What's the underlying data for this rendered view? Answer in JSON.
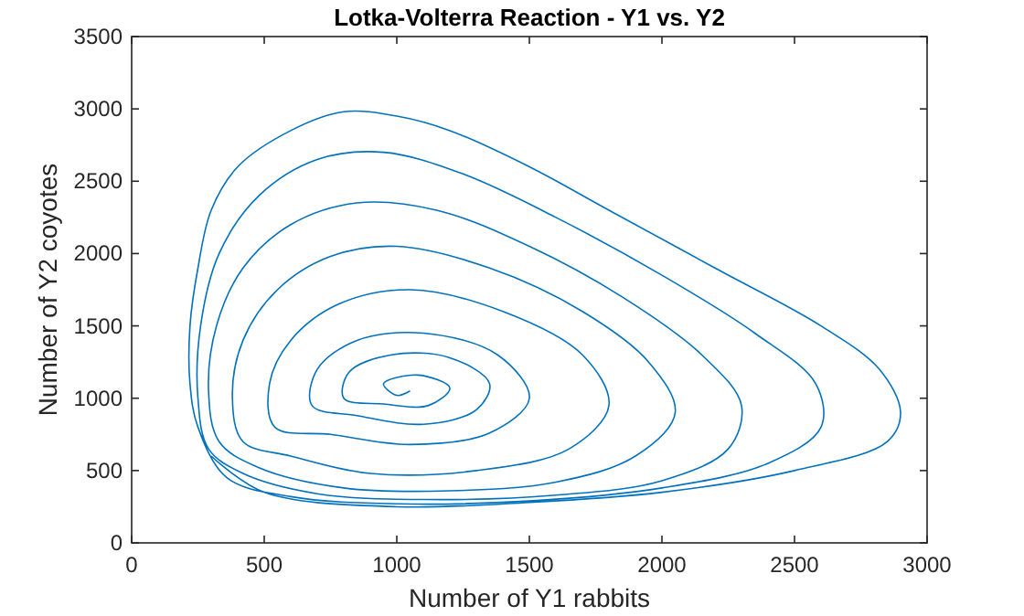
{
  "chart_data": {
    "type": "line",
    "title": "Lotka-Volterra Reaction - Y1 vs. Y2",
    "xlabel": "Number of Y1 rabbits",
    "ylabel": "Number of Y2 coyotes",
    "xlim": [
      0,
      3000
    ],
    "xticks": [
      0,
      500,
      1000,
      1500,
      2000,
      2500,
      3000
    ],
    "ylim": [
      0,
      3500
    ],
    "yticks": [
      0,
      500,
      1000,
      1500,
      2000,
      2500,
      3000,
      3500
    ],
    "grid": false,
    "series": [
      {
        "color": "#0072bd",
        "x": [
          300,
          500,
          1000,
          1500,
          2000,
          2500,
          2850,
          2900,
          2820,
          2600,
          2200,
          1800,
          1500,
          1200,
          1000,
          800,
          600,
          400,
          300,
          250,
          220,
          220,
          250,
          360,
          600,
          1000,
          1500,
          2000,
          2400,
          2600,
          2580,
          2350,
          2000,
          1600,
          1250,
          950,
          700,
          480,
          330,
          260,
          250,
          290,
          420,
          700,
          1100,
          1600,
          2000,
          2250,
          2300,
          2150,
          1850,
          1500,
          1150,
          850,
          600,
          420,
          320,
          290,
          330,
          480,
          800,
          1200,
          1600,
          1900,
          2050,
          1950,
          1700,
          1350,
          1000,
          750,
          550,
          420,
          380,
          420,
          600,
          900,
          1300,
          1650,
          1800,
          1700,
          1400,
          1050,
          780,
          600,
          520,
          540,
          750,
          1050,
          1350,
          1500,
          1380,
          1100,
          850,
          700,
          680,
          850,
          1100,
          1300,
          1350,
          1200,
          980,
          820,
          800,
          950,
          1120,
          1200,
          1080,
          950,
          1000,
          1050
        ],
        "values": [
          600,
          350,
          250,
          280,
          350,
          500,
          700,
          900,
          1200,
          1500,
          1900,
          2300,
          2600,
          2850,
          2950,
          2980,
          2850,
          2600,
          2300,
          1900,
          1500,
          1100,
          800,
          450,
          320,
          270,
          290,
          380,
          550,
          800,
          1100,
          1450,
          1850,
          2250,
          2550,
          2700,
          2650,
          2400,
          2000,
          1500,
          1000,
          650,
          480,
          340,
          300,
          330,
          430,
          650,
          950,
          1300,
          1700,
          2050,
          2300,
          2350,
          2200,
          1900,
          1500,
          1050,
          700,
          520,
          380,
          360,
          420,
          600,
          900,
          1250,
          1600,
          1900,
          2050,
          1980,
          1750,
          1400,
          1000,
          700,
          600,
          480,
          500,
          650,
          950,
          1300,
          1600,
          1750,
          1650,
          1400,
          1100,
          800,
          750,
          680,
          760,
          1000,
          1300,
          1450,
          1400,
          1200,
          950,
          880,
          820,
          920,
          1100,
          1280,
          1300,
          1180,
          1000,
          960,
          950,
          1070,
          1160,
          1100,
          1020,
          1050
        ]
      }
    ]
  }
}
